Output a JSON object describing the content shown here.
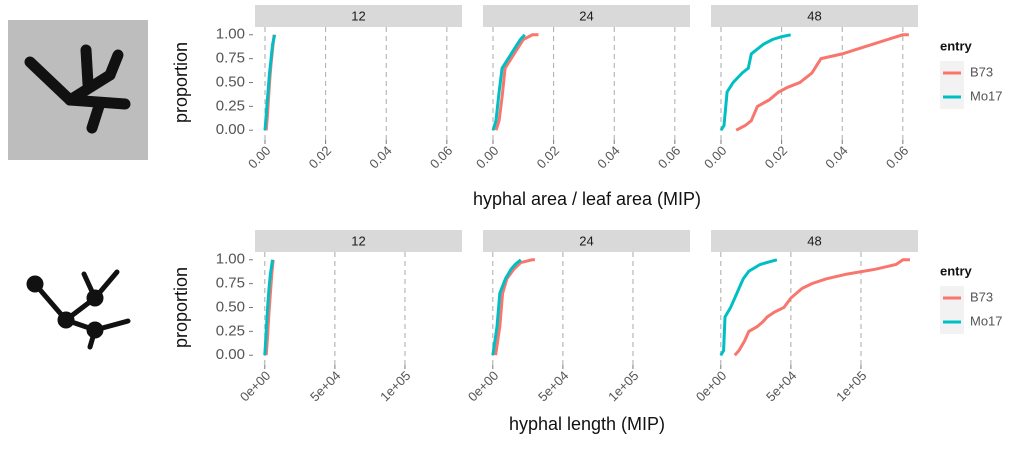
{
  "chart_data": [
    {
      "type": "line",
      "ylabel": "proportion",
      "xlabel": "hyphal area / leaf area (MIP)",
      "legend_title": "entry",
      "grid": "x",
      "xlim": [
        -0.0033,
        0.065
      ],
      "xticks": [
        {
          "value": 0,
          "label": "0.00"
        },
        0.02,
        0.04,
        0.06
      ],
      "ylim": [
        -0.05,
        1.05
      ],
      "yticks": [
        {
          "value": 0,
          "label": "0.00"
        },
        {
          "value": 0.25,
          "label": "0.25"
        },
        {
          "value": 0.5,
          "label": "0.50"
        },
        {
          "value": 0.75,
          "label": "0.75"
        },
        {
          "value": 1,
          "label": "1.00"
        }
      ],
      "series": [
        {
          "name": "B73",
          "color": "#f8766d"
        },
        {
          "name": "Mo17",
          "color": "#00bfc4"
        }
      ],
      "facets": [
        {
          "title": "12",
          "series": [
            {
              "x": [
                0.0004,
                0.0008,
                0.0012,
                0.0016,
                0.002,
                0.0025,
                0.003
              ],
              "values": [
                0,
                0.15,
                0.35,
                0.55,
                0.7,
                0.85,
                1
              ]
            },
            {
              "x": [
                0,
                0.0005,
                0.001,
                0.0015,
                0.002,
                0.0025,
                0.0032
              ],
              "values": [
                0,
                0.2,
                0.4,
                0.6,
                0.75,
                0.9,
                1
              ]
            }
          ]
        },
        {
          "title": "24",
          "series": [
            {
              "x": [
                0.001,
                0.002,
                0.003,
                0.004,
                0.006,
                0.008,
                0.01,
                0.013,
                0.015
              ],
              "values": [
                0,
                0.1,
                0.35,
                0.65,
                0.75,
                0.85,
                0.95,
                1,
                1
              ]
            },
            {
              "x": [
                0,
                0.001,
                0.002,
                0.003,
                0.005,
                0.007,
                0.009,
                0.0105
              ],
              "values": [
                0,
                0.1,
                0.4,
                0.65,
                0.75,
                0.85,
                0.95,
                1
              ]
            }
          ]
        },
        {
          "title": "48",
          "series": [
            {
              "x": [
                0.005,
                0.008,
                0.01,
                0.012,
                0.016,
                0.019,
                0.022,
                0.026,
                0.03,
                0.033,
                0.04,
                0.045,
                0.05,
                0.055,
                0.06,
                0.062
              ],
              "values": [
                0,
                0.05,
                0.1,
                0.25,
                0.32,
                0.4,
                0.45,
                0.5,
                0.6,
                0.75,
                0.8,
                0.85,
                0.9,
                0.95,
                1,
                1
              ]
            },
            {
              "x": [
                0,
                0.001,
                0.002,
                0.004,
                0.007,
                0.009,
                0.01,
                0.012,
                0.014,
                0.017,
                0.02,
                0.023
              ],
              "values": [
                0,
                0.05,
                0.4,
                0.5,
                0.6,
                0.65,
                0.8,
                0.85,
                0.9,
                0.95,
                0.98,
                1
              ]
            }
          ]
        }
      ]
    },
    {
      "type": "line",
      "ylabel": "proportion",
      "xlabel": "hyphal length (MIP)",
      "legend_title": "entry",
      "grid": "x",
      "xlim": [
        -7000,
        140700
      ],
      "xticks": [
        {
          "value": 0,
          "label": "0e+00"
        },
        {
          "value": 50000,
          "label": "5e+04"
        },
        {
          "value": 100000,
          "label": "1e+05"
        }
      ],
      "ylim": [
        -0.05,
        1.05
      ],
      "yticks": [
        {
          "value": 0,
          "label": "0.00"
        },
        {
          "value": 0.25,
          "label": "0.25"
        },
        {
          "value": 0.5,
          "label": "0.50"
        },
        {
          "value": 0.75,
          "label": "0.75"
        },
        {
          "value": 1,
          "label": "1.00"
        }
      ],
      "series": [
        {
          "name": "B73",
          "color": "#f8766d"
        },
        {
          "name": "Mo17",
          "color": "#00bfc4"
        }
      ],
      "facets": [
        {
          "title": "12",
          "series": [
            {
              "x": [
                1000,
                2000,
                3000,
                4000,
                5000,
                6000
              ],
              "values": [
                0,
                0.2,
                0.45,
                0.65,
                0.85,
                1
              ]
            },
            {
              "x": [
                0,
                1000,
                2000,
                3000,
                4000,
                5500
              ],
              "values": [
                0,
                0.25,
                0.5,
                0.7,
                0.85,
                1
              ]
            }
          ]
        },
        {
          "title": "24",
          "series": [
            {
              "x": [
                2000,
                5000,
                7000,
                10000,
                15000,
                20000,
                28000,
                30000
              ],
              "values": [
                0,
                0.3,
                0.65,
                0.8,
                0.9,
                0.97,
                1,
                1
              ]
            },
            {
              "x": [
                0,
                3000,
                5000,
                9000,
                13000,
                16000,
                20000
              ],
              "values": [
                0,
                0.3,
                0.65,
                0.8,
                0.9,
                0.95,
                1
              ]
            }
          ]
        },
        {
          "title": "48",
          "series": [
            {
              "x": [
                10000,
                13000,
                17000,
                20000,
                26000,
                30000,
                33000,
                38000,
                45000,
                50000,
                58000,
                65000,
                75000,
                90000,
                110000,
                125000,
                130000,
                135000
              ],
              "values": [
                0,
                0.05,
                0.15,
                0.25,
                0.3,
                0.35,
                0.4,
                0.45,
                0.5,
                0.6,
                0.7,
                0.75,
                0.8,
                0.85,
                0.9,
                0.95,
                1,
                1
              ]
            },
            {
              "x": [
                0,
                2000,
                3000,
                7000,
                10000,
                13000,
                16000,
                20000,
                28000,
                35000,
                40000
              ],
              "values": [
                0,
                0.05,
                0.4,
                0.5,
                0.6,
                0.7,
                0.8,
                0.88,
                0.95,
                0.98,
                1
              ]
            }
          ]
        }
      ]
    }
  ]
}
